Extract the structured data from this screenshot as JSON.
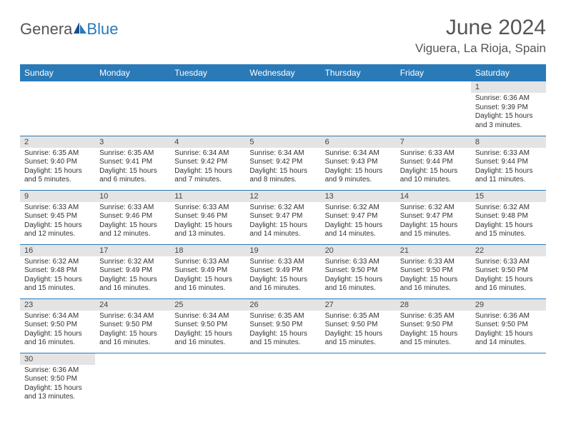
{
  "logo": {
    "part1": "Genera",
    "part2": "Blue"
  },
  "title": "June 2024",
  "location": "Viguera, La Rioja, Spain",
  "colors": {
    "header_bg": "#2a7ab8",
    "header_text": "#ffffff",
    "daynum_bg": "#e4e4e4",
    "border": "#2a7ab8",
    "title_color": "#555555",
    "body_text": "#333333",
    "background": "#ffffff"
  },
  "typography": {
    "title_fontsize": 30,
    "location_fontsize": 17,
    "dayheader_fontsize": 12,
    "cell_fontsize": 10
  },
  "day_headers": [
    "Sunday",
    "Monday",
    "Tuesday",
    "Wednesday",
    "Thursday",
    "Friday",
    "Saturday"
  ],
  "weeks": [
    [
      null,
      null,
      null,
      null,
      null,
      null,
      {
        "n": "1",
        "sunrise": "Sunrise: 6:36 AM",
        "sunset": "Sunset: 9:39 PM",
        "daylight": "Daylight: 15 hours and 3 minutes."
      }
    ],
    [
      {
        "n": "2",
        "sunrise": "Sunrise: 6:35 AM",
        "sunset": "Sunset: 9:40 PM",
        "daylight": "Daylight: 15 hours and 5 minutes."
      },
      {
        "n": "3",
        "sunrise": "Sunrise: 6:35 AM",
        "sunset": "Sunset: 9:41 PM",
        "daylight": "Daylight: 15 hours and 6 minutes."
      },
      {
        "n": "4",
        "sunrise": "Sunrise: 6:34 AM",
        "sunset": "Sunset: 9:42 PM",
        "daylight": "Daylight: 15 hours and 7 minutes."
      },
      {
        "n": "5",
        "sunrise": "Sunrise: 6:34 AM",
        "sunset": "Sunset: 9:42 PM",
        "daylight": "Daylight: 15 hours and 8 minutes."
      },
      {
        "n": "6",
        "sunrise": "Sunrise: 6:34 AM",
        "sunset": "Sunset: 9:43 PM",
        "daylight": "Daylight: 15 hours and 9 minutes."
      },
      {
        "n": "7",
        "sunrise": "Sunrise: 6:33 AM",
        "sunset": "Sunset: 9:44 PM",
        "daylight": "Daylight: 15 hours and 10 minutes."
      },
      {
        "n": "8",
        "sunrise": "Sunrise: 6:33 AM",
        "sunset": "Sunset: 9:44 PM",
        "daylight": "Daylight: 15 hours and 11 minutes."
      }
    ],
    [
      {
        "n": "9",
        "sunrise": "Sunrise: 6:33 AM",
        "sunset": "Sunset: 9:45 PM",
        "daylight": "Daylight: 15 hours and 12 minutes."
      },
      {
        "n": "10",
        "sunrise": "Sunrise: 6:33 AM",
        "sunset": "Sunset: 9:46 PM",
        "daylight": "Daylight: 15 hours and 12 minutes."
      },
      {
        "n": "11",
        "sunrise": "Sunrise: 6:33 AM",
        "sunset": "Sunset: 9:46 PM",
        "daylight": "Daylight: 15 hours and 13 minutes."
      },
      {
        "n": "12",
        "sunrise": "Sunrise: 6:32 AM",
        "sunset": "Sunset: 9:47 PM",
        "daylight": "Daylight: 15 hours and 14 minutes."
      },
      {
        "n": "13",
        "sunrise": "Sunrise: 6:32 AM",
        "sunset": "Sunset: 9:47 PM",
        "daylight": "Daylight: 15 hours and 14 minutes."
      },
      {
        "n": "14",
        "sunrise": "Sunrise: 6:32 AM",
        "sunset": "Sunset: 9:47 PM",
        "daylight": "Daylight: 15 hours and 15 minutes."
      },
      {
        "n": "15",
        "sunrise": "Sunrise: 6:32 AM",
        "sunset": "Sunset: 9:48 PM",
        "daylight": "Daylight: 15 hours and 15 minutes."
      }
    ],
    [
      {
        "n": "16",
        "sunrise": "Sunrise: 6:32 AM",
        "sunset": "Sunset: 9:48 PM",
        "daylight": "Daylight: 15 hours and 15 minutes."
      },
      {
        "n": "17",
        "sunrise": "Sunrise: 6:32 AM",
        "sunset": "Sunset: 9:49 PM",
        "daylight": "Daylight: 15 hours and 16 minutes."
      },
      {
        "n": "18",
        "sunrise": "Sunrise: 6:33 AM",
        "sunset": "Sunset: 9:49 PM",
        "daylight": "Daylight: 15 hours and 16 minutes."
      },
      {
        "n": "19",
        "sunrise": "Sunrise: 6:33 AM",
        "sunset": "Sunset: 9:49 PM",
        "daylight": "Daylight: 15 hours and 16 minutes."
      },
      {
        "n": "20",
        "sunrise": "Sunrise: 6:33 AM",
        "sunset": "Sunset: 9:50 PM",
        "daylight": "Daylight: 15 hours and 16 minutes."
      },
      {
        "n": "21",
        "sunrise": "Sunrise: 6:33 AM",
        "sunset": "Sunset: 9:50 PM",
        "daylight": "Daylight: 15 hours and 16 minutes."
      },
      {
        "n": "22",
        "sunrise": "Sunrise: 6:33 AM",
        "sunset": "Sunset: 9:50 PM",
        "daylight": "Daylight: 15 hours and 16 minutes."
      }
    ],
    [
      {
        "n": "23",
        "sunrise": "Sunrise: 6:34 AM",
        "sunset": "Sunset: 9:50 PM",
        "daylight": "Daylight: 15 hours and 16 minutes."
      },
      {
        "n": "24",
        "sunrise": "Sunrise: 6:34 AM",
        "sunset": "Sunset: 9:50 PM",
        "daylight": "Daylight: 15 hours and 16 minutes."
      },
      {
        "n": "25",
        "sunrise": "Sunrise: 6:34 AM",
        "sunset": "Sunset: 9:50 PM",
        "daylight": "Daylight: 15 hours and 16 minutes."
      },
      {
        "n": "26",
        "sunrise": "Sunrise: 6:35 AM",
        "sunset": "Sunset: 9:50 PM",
        "daylight": "Daylight: 15 hours and 15 minutes."
      },
      {
        "n": "27",
        "sunrise": "Sunrise: 6:35 AM",
        "sunset": "Sunset: 9:50 PM",
        "daylight": "Daylight: 15 hours and 15 minutes."
      },
      {
        "n": "28",
        "sunrise": "Sunrise: 6:35 AM",
        "sunset": "Sunset: 9:50 PM",
        "daylight": "Daylight: 15 hours and 15 minutes."
      },
      {
        "n": "29",
        "sunrise": "Sunrise: 6:36 AM",
        "sunset": "Sunset: 9:50 PM",
        "daylight": "Daylight: 15 hours and 14 minutes."
      }
    ],
    [
      {
        "n": "30",
        "sunrise": "Sunrise: 6:36 AM",
        "sunset": "Sunset: 9:50 PM",
        "daylight": "Daylight: 15 hours and 13 minutes."
      },
      null,
      null,
      null,
      null,
      null,
      null
    ]
  ]
}
